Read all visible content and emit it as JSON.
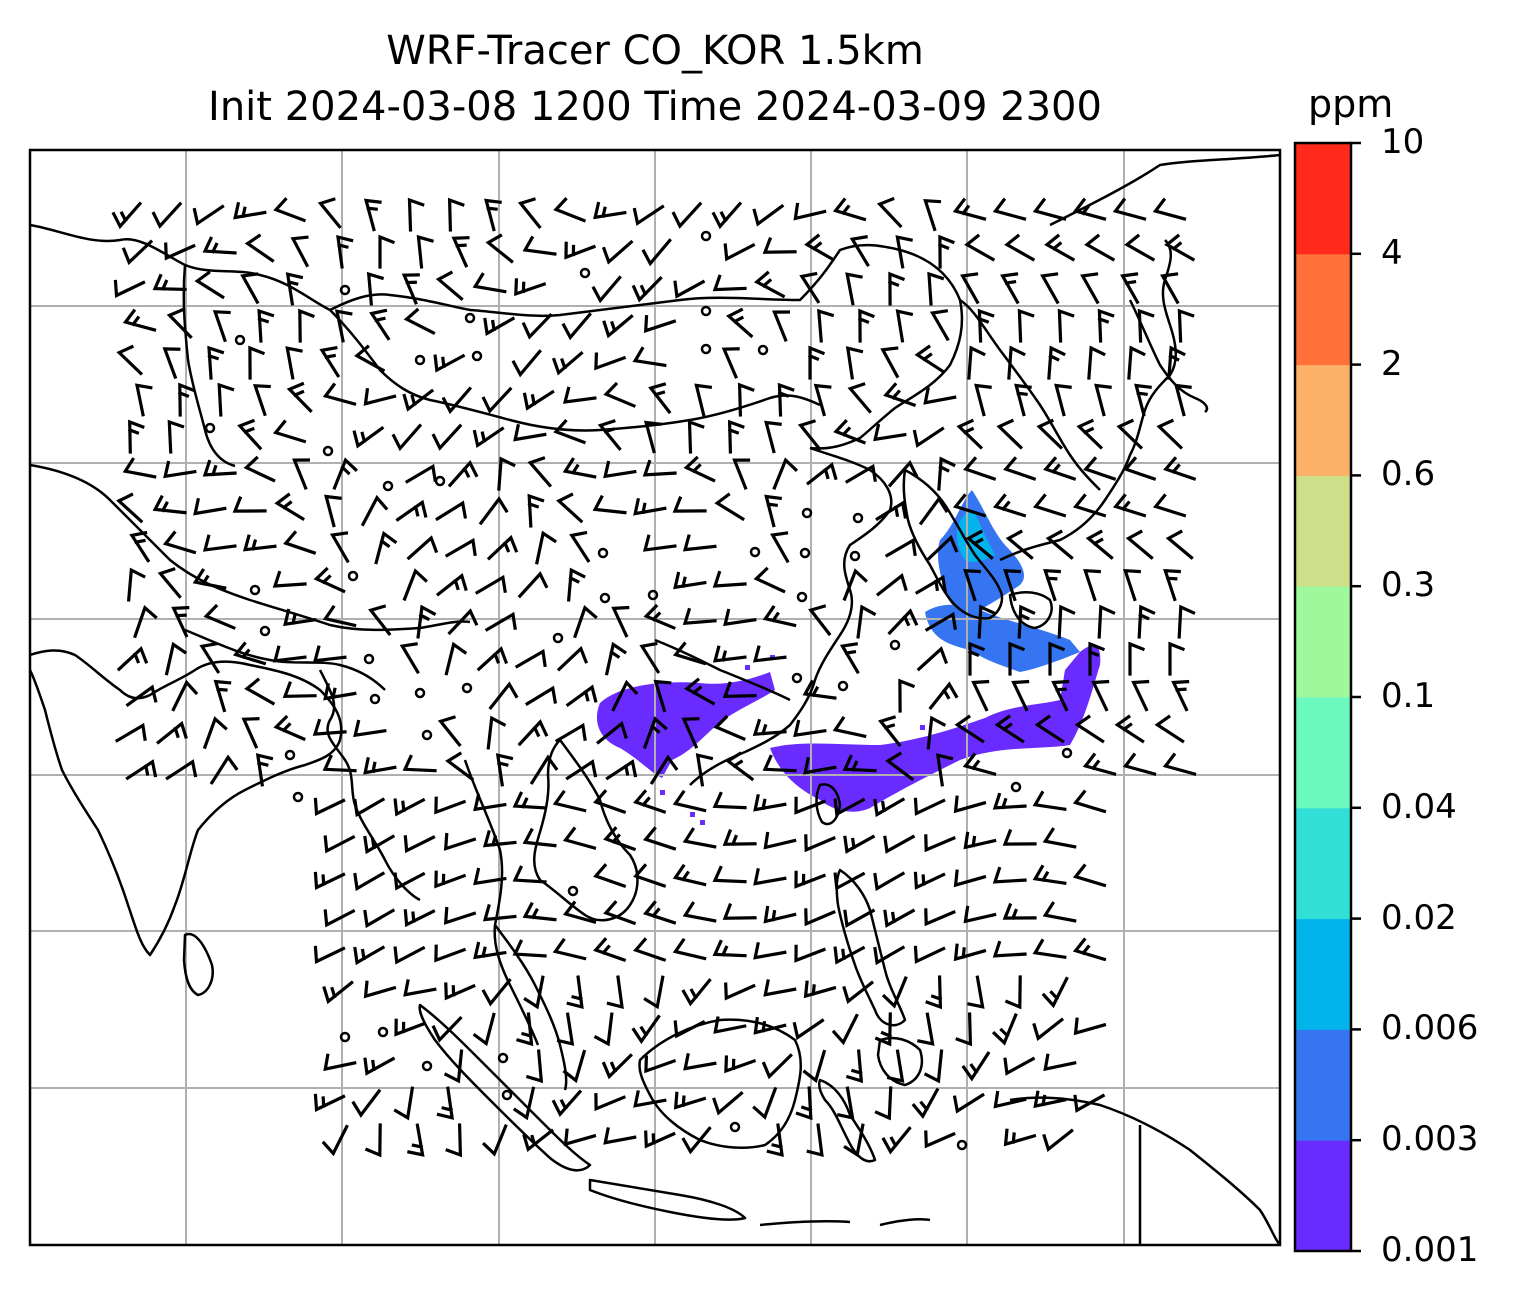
{
  "title": {
    "line1": "WRF-Tracer CO_KOR 1.5km",
    "line2": "Init 2024-03-08 1200 Time 2024-03-09 2300"
  },
  "colorbar": {
    "unit": "ppm",
    "ticks": [
      "0.001",
      "0.003",
      "0.006",
      "0.02",
      "0.04",
      "0.1",
      "0.3",
      "0.6",
      "2",
      "4",
      "10"
    ],
    "colors": [
      "#6a2bff",
      "#3575f2",
      "#03b3ec",
      "#31dfd6",
      "#6bf9c0",
      "#9df99c",
      "#cde089",
      "#fdb067",
      "#ff7139",
      "#ff2a1a"
    ]
  },
  "plume": {
    "color_main": "#6a2bff",
    "color_mid": "#3575f2",
    "color_core": "#03b3ec"
  },
  "map": {
    "gridlines": true,
    "coastline_color": "#000000",
    "grid_color": "#b0b0b0"
  }
}
